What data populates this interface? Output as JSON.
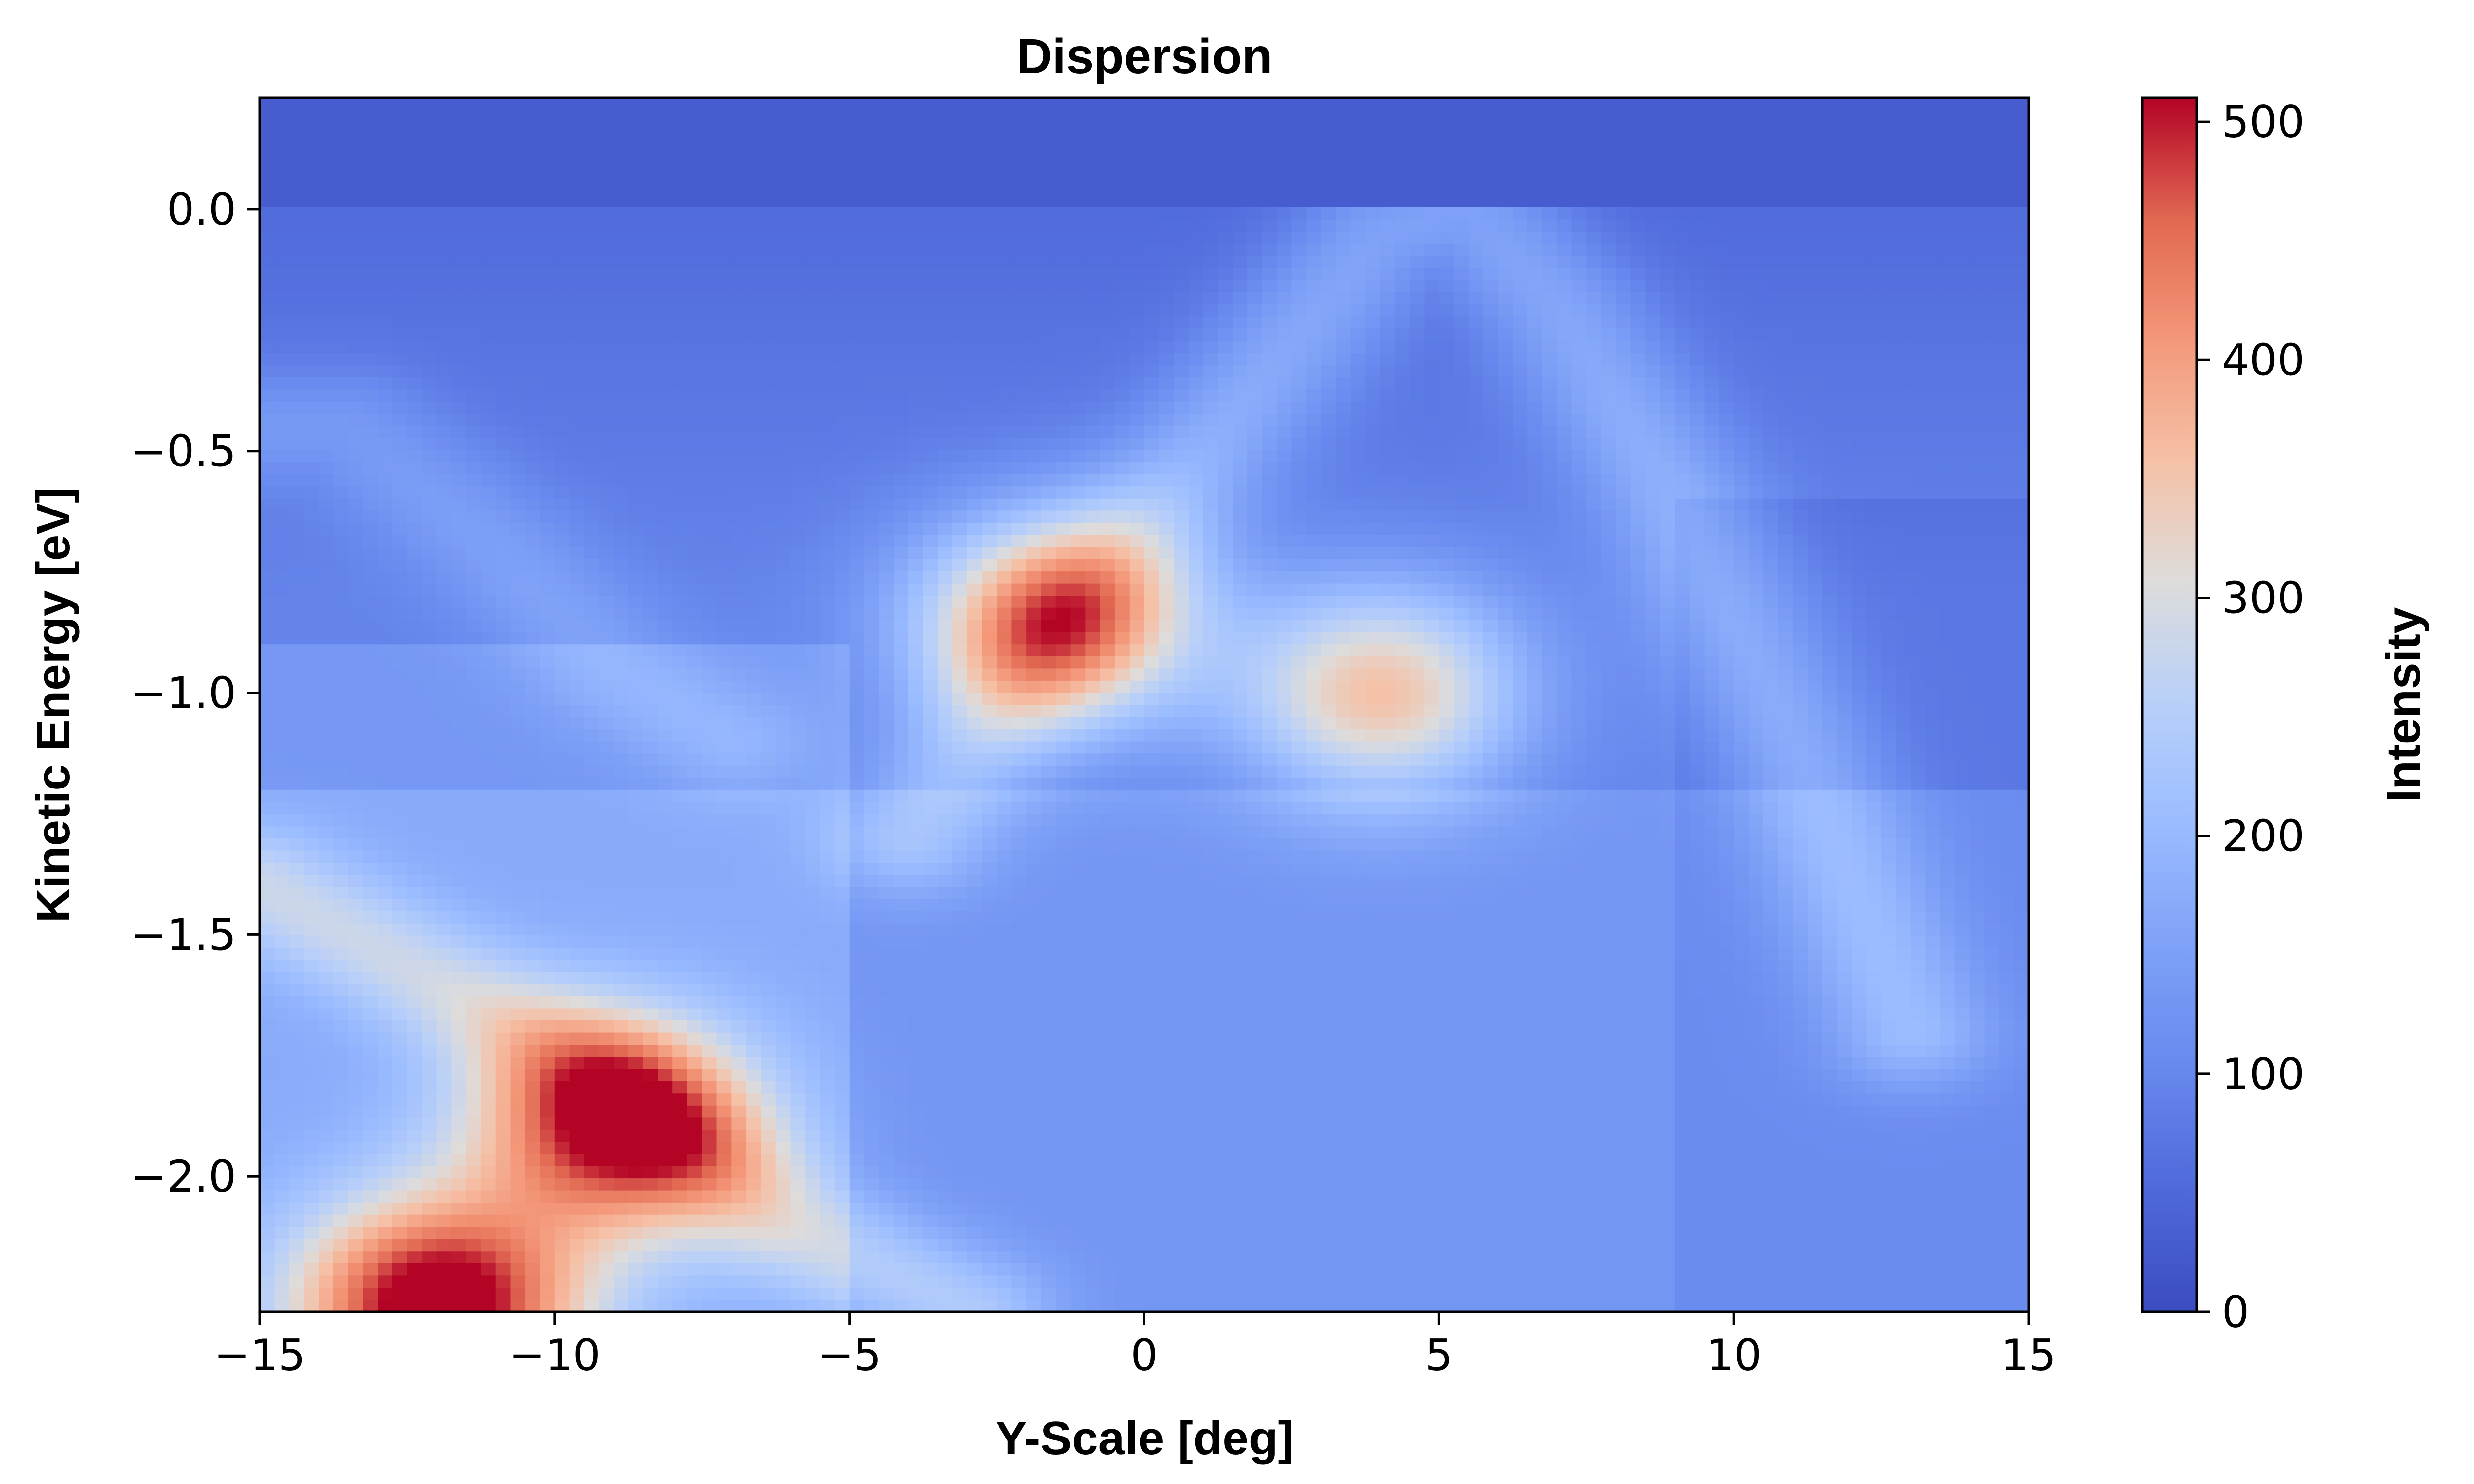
{
  "chart_data": {
    "type": "heatmap",
    "title": "Dispersion",
    "xlabel": "Y-Scale [deg]",
    "ylabel": "Kinetic Energy [eV]",
    "xlim": [
      -15,
      15
    ],
    "ylim": [
      -2.28,
      0.23
    ],
    "x_ticks": [
      -15,
      -10,
      -5,
      0,
      5,
      10,
      15
    ],
    "x_tick_labels": [
      "−15",
      "−10",
      "−5",
      "0",
      "5",
      "10",
      "15"
    ],
    "y_ticks": [
      0.0,
      -0.5,
      -1.0,
      -1.5,
      -2.0
    ],
    "y_tick_labels": [
      "0.0",
      "−0.5",
      "−1.0",
      "−1.5",
      "−2.0"
    ],
    "colorbar": {
      "label": "Intensity",
      "colormap": "coolwarm",
      "range": [
        0,
        510
      ],
      "ticks": [
        0,
        100,
        200,
        300,
        400,
        500
      ],
      "tick_labels": [
        "0",
        "100",
        "200",
        "300",
        "400",
        "500"
      ]
    },
    "features": [
      {
        "kind": "band",
        "points": [
          [
            -15,
            -0.45
          ],
          [
            -13.5,
            -0.45
          ],
          [
            -11,
            -0.7
          ],
          [
            -9,
            -0.95
          ],
          [
            -7,
            -1.1
          ]
        ],
        "intensity": 160
      },
      {
        "kind": "band",
        "points": [
          [
            -4,
            -1.3
          ],
          [
            -2,
            -0.95
          ],
          [
            0,
            -0.65
          ],
          [
            2,
            -0.35
          ],
          [
            4,
            -0.05
          ],
          [
            5.5,
            0.0
          ],
          [
            7,
            -0.2
          ],
          [
            9,
            -0.6
          ],
          [
            11,
            -1.1
          ],
          [
            13,
            -1.7
          ]
        ],
        "intensity": 210
      },
      {
        "kind": "band",
        "points": [
          [
            -15,
            -1.4
          ],
          [
            -12,
            -1.6
          ],
          [
            -9,
            -1.8
          ],
          [
            -6,
            -2.1
          ],
          [
            -3,
            -2.28
          ]
        ],
        "intensity": 230
      },
      {
        "kind": "peak",
        "x": -1.5,
        "y": -0.85,
        "intensity": 430
      },
      {
        "kind": "peak",
        "x": 4.0,
        "y": -1.0,
        "intensity": 370
      },
      {
        "kind": "peak",
        "x": -9.0,
        "y": -1.9,
        "intensity": 440
      },
      {
        "kind": "peak",
        "x": -12.0,
        "y": -2.27,
        "intensity": 500
      }
    ]
  }
}
